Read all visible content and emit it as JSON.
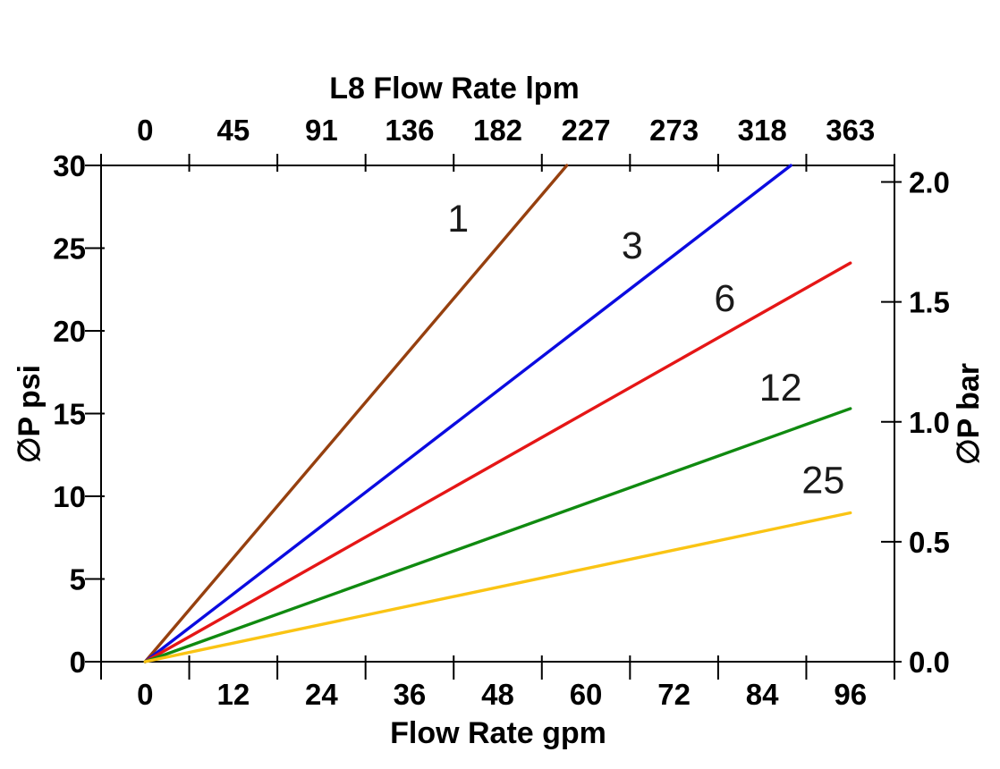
{
  "chart_data": {
    "type": "line",
    "title_top": "L8 Flow Rate lpm",
    "xlabel_bottom": "Flow Rate gpm",
    "ylabel_left": "∅P psi",
    "ylabel_right": "∅P bar",
    "x_bottom_ticks": [
      "0",
      "12",
      "24",
      "36",
      "48",
      "60",
      "72",
      "84",
      "96"
    ],
    "x_top_ticks": [
      "0",
      "45",
      "91",
      "136",
      "182",
      "227",
      "273",
      "318",
      "363"
    ],
    "y_left_ticks": [
      "0",
      "5",
      "10",
      "15",
      "20",
      "25",
      "30"
    ],
    "y_right_ticks": [
      "0.0",
      "0.5",
      "1.0",
      "1.5",
      "2.0"
    ],
    "x_bottom_unit": "gpm",
    "x_top_unit": "lpm",
    "y_left_range_psi": [
      0,
      30
    ],
    "y_right_range_bar": [
      0.0,
      2.0
    ],
    "psi_per_bar": 14.5,
    "grid": false,
    "legend": "inline-curve-labels",
    "axis_color": "#000000",
    "series": [
      {
        "name": "1",
        "color": "#96400f",
        "points_gpm_psi": [
          [
            0,
            0
          ],
          [
            57.4,
            30
          ]
        ],
        "clipped_at_top": true,
        "label_pos_gpm_psi": [
          42.6,
          26.8
        ]
      },
      {
        "name": "3",
        "color": "#0b0be0",
        "points_gpm_psi": [
          [
            0,
            0
          ],
          [
            87.9,
            30
          ]
        ],
        "clipped_at_top": true,
        "label_pos_gpm_psi": [
          66.3,
          25.2
        ]
      },
      {
        "name": "6",
        "color": "#e51616",
        "points_gpm_psi": [
          [
            0,
            0
          ],
          [
            96,
            24.1
          ]
        ],
        "clipped_at_top": false,
        "label_pos_gpm_psi": [
          78.9,
          22.0
        ]
      },
      {
        "name": "12",
        "color": "#108a10",
        "points_gpm_psi": [
          [
            0,
            0
          ],
          [
            96,
            15.3
          ]
        ],
        "clipped_at_top": false,
        "label_pos_gpm_psi": [
          86.5,
          16.6
        ]
      },
      {
        "name": "25",
        "color": "#fac414",
        "points_gpm_psi": [
          [
            0,
            0
          ],
          [
            96,
            9.0
          ]
        ],
        "clipped_at_top": false,
        "label_pos_gpm_psi": [
          92.3,
          11.0
        ]
      }
    ]
  }
}
